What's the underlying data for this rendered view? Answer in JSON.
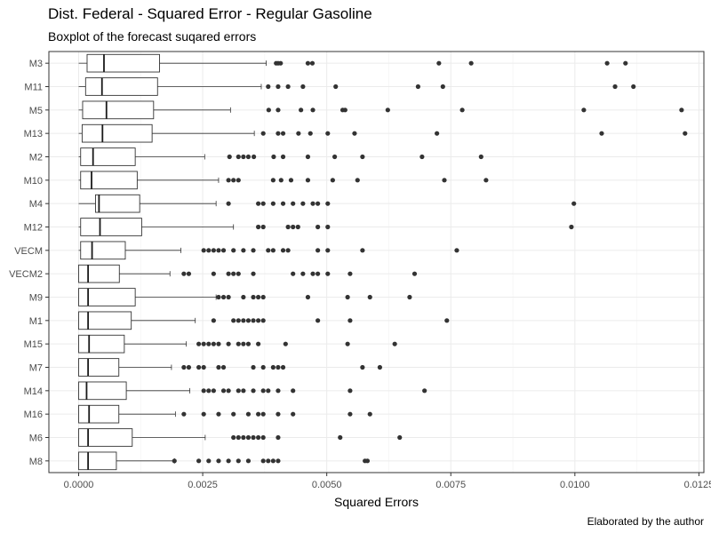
{
  "chart_data": {
    "type": "boxplot",
    "title": "Dist. Federal - Squared Error - Regular Gasoline",
    "subtitle": "Boxplot of the forecast suqared errors",
    "xlabel": "Squared Errors",
    "ylabel": "",
    "caption": "Elaborated by the author",
    "xlim": [
      -0.0006,
      0.0126
    ],
    "xticks": [
      0.0,
      0.0025,
      0.005,
      0.0075,
      0.01,
      0.0125
    ],
    "xtick_labels": [
      "0.0000",
      "0.0025",
      "0.0050",
      "0.0075",
      "0.0100",
      "0.0125"
    ],
    "grid": true,
    "legend": "none",
    "categories": [
      "M3",
      "M11",
      "M5",
      "M13",
      "M2",
      "M10",
      "M4",
      "M12",
      "VECM",
      "VECM2",
      "M9",
      "M1",
      "M15",
      "M7",
      "M14",
      "M16",
      "M6",
      "M8"
    ],
    "boxes": [
      {
        "name": "M3",
        "min": 0.0,
        "q1": 0.00017,
        "median": 0.00051,
        "q3": 0.00163,
        "max": 0.00378,
        "outliers": [
          0.00398,
          0.00402,
          0.00407,
          0.00462,
          0.00471,
          0.00726,
          0.00791,
          0.01065,
          0.01102
        ]
      },
      {
        "name": "M11",
        "min": 0.0,
        "q1": 0.00014,
        "median": 0.00047,
        "q3": 0.00159,
        "max": 0.00368,
        "outliers": [
          0.00382,
          0.00402,
          0.00422,
          0.00452,
          0.00518,
          0.00684,
          0.00734,
          0.01081,
          0.01118
        ]
      },
      {
        "name": "M5",
        "min": 0.0,
        "q1": 8e-05,
        "median": 0.00056,
        "q3": 0.00151,
        "max": 0.00306,
        "outliers": [
          0.00383,
          0.00402,
          0.00448,
          0.00472,
          0.00532,
          0.00537,
          0.00623,
          0.00773,
          0.01018,
          0.01215
        ]
      },
      {
        "name": "M13",
        "min": 0.0,
        "q1": 7e-05,
        "median": 0.00048,
        "q3": 0.00148,
        "max": 0.00354,
        "outliers": [
          0.00372,
          0.00402,
          0.00412,
          0.00443,
          0.00467,
          0.00502,
          0.00556,
          0.00722,
          0.01054,
          0.01222
        ]
      },
      {
        "name": "M2",
        "min": 0.0,
        "q1": 4e-05,
        "median": 0.00029,
        "q3": 0.00114,
        "max": 0.00254,
        "outliers": [
          0.00304,
          0.00322,
          0.00332,
          0.00342,
          0.00353,
          0.00393,
          0.00412,
          0.00462,
          0.00516,
          0.00572,
          0.00692,
          0.00811
        ]
      },
      {
        "name": "M10",
        "min": 0.0,
        "q1": 4e-05,
        "median": 0.00026,
        "q3": 0.00118,
        "max": 0.00282,
        "outliers": [
          0.00302,
          0.00312,
          0.00322,
          0.00392,
          0.00408,
          0.00428,
          0.00462,
          0.00512,
          0.00562,
          0.00737,
          0.00821
        ]
      },
      {
        "name": "M4",
        "min": 0.0,
        "q1": 0.00034,
        "median": 0.00041,
        "q3": 0.00123,
        "max": 0.00277,
        "outliers": [
          0.00302,
          0.00362,
          0.00372,
          0.00392,
          0.00412,
          0.00432,
          0.00452,
          0.00472,
          0.00482,
          0.00502,
          0.00998
        ]
      },
      {
        "name": "M12",
        "min": 0.0,
        "q1": 4e-05,
        "median": 0.00043,
        "q3": 0.00127,
        "max": 0.00312,
        "outliers": [
          0.00362,
          0.00372,
          0.00422,
          0.00432,
          0.00442,
          0.00482,
          0.00502,
          0.00993
        ]
      },
      {
        "name": "VECM",
        "min": 0.0,
        "q1": 4e-05,
        "median": 0.00027,
        "q3": 0.00094,
        "max": 0.00206,
        "outliers": [
          0.00252,
          0.00262,
          0.00272,
          0.00282,
          0.00292,
          0.00312,
          0.00332,
          0.00352,
          0.00382,
          0.00392,
          0.00412,
          0.00422,
          0.00482,
          0.00502,
          0.00572,
          0.00762
        ]
      },
      {
        "name": "VECM2",
        "min": 0.0,
        "q1": 0.0,
        "median": 0.00019,
        "q3": 0.00082,
        "max": 0.00184,
        "outliers": [
          0.00212,
          0.00222,
          0.00272,
          0.00302,
          0.00312,
          0.00322,
          0.00352,
          0.00432,
          0.00452,
          0.00472,
          0.00482,
          0.00502,
          0.00547,
          0.00677
        ]
      },
      {
        "name": "M9",
        "min": 0.0,
        "q1": 0.0,
        "median": 0.00019,
        "q3": 0.00114,
        "max": 0.00277,
        "outliers": [
          0.00282,
          0.00292,
          0.00302,
          0.00332,
          0.00352,
          0.00362,
          0.00372,
          0.00462,
          0.00542,
          0.00587,
          0.00667
        ]
      },
      {
        "name": "M1",
        "min": 0.0,
        "q1": 0.0,
        "median": 0.00019,
        "q3": 0.00106,
        "max": 0.00235,
        "outliers": [
          0.00272,
          0.00312,
          0.00322,
          0.00332,
          0.00342,
          0.00352,
          0.00362,
          0.00372,
          0.00482,
          0.00547,
          0.00742
        ]
      },
      {
        "name": "M15",
        "min": 0.0,
        "q1": 0.0,
        "median": 0.00021,
        "q3": 0.00092,
        "max": 0.00217,
        "outliers": [
          0.00242,
          0.00252,
          0.00262,
          0.00272,
          0.00282,
          0.00302,
          0.00322,
          0.00332,
          0.00342,
          0.00362,
          0.00417,
          0.00542,
          0.00637
        ]
      },
      {
        "name": "M7",
        "min": 0.0,
        "q1": 0.0,
        "median": 0.00019,
        "q3": 0.00081,
        "max": 0.00187,
        "outliers": [
          0.00212,
          0.00222,
          0.00242,
          0.00252,
          0.00282,
          0.00292,
          0.00352,
          0.00372,
          0.00392,
          0.00402,
          0.00412,
          0.00572,
          0.00607
        ]
      },
      {
        "name": "M14",
        "min": 0.0,
        "q1": 0.0,
        "median": 0.00016,
        "q3": 0.00096,
        "max": 0.00224,
        "outliers": [
          0.00252,
          0.00262,
          0.00272,
          0.00292,
          0.00302,
          0.00322,
          0.00332,
          0.00352,
          0.00372,
          0.00382,
          0.00402,
          0.00432,
          0.00547,
          0.00697
        ]
      },
      {
        "name": "M16",
        "min": 0.0,
        "q1": 0.0,
        "median": 0.00021,
        "q3": 0.00081,
        "max": 0.00195,
        "outliers": [
          0.00212,
          0.00252,
          0.00282,
          0.00312,
          0.00342,
          0.00362,
          0.00372,
          0.00402,
          0.00432,
          0.00547,
          0.00587
        ]
      },
      {
        "name": "M6",
        "min": 0.0,
        "q1": 0.0,
        "median": 0.00019,
        "q3": 0.00108,
        "max": 0.00255,
        "outliers": [
          0.00312,
          0.00322,
          0.00332,
          0.00342,
          0.00352,
          0.00362,
          0.00372,
          0.00402,
          0.00527,
          0.00647
        ]
      },
      {
        "name": "M8",
        "min": 0.0,
        "q1": 0.0,
        "median": 0.00019,
        "q3": 0.00076,
        "max": 0.00193,
        "outliers": [
          0.00193,
          0.00242,
          0.00262,
          0.00282,
          0.00302,
          0.00322,
          0.00342,
          0.00372,
          0.00382,
          0.00392,
          0.00402,
          0.00577,
          0.00582
        ]
      }
    ]
  }
}
